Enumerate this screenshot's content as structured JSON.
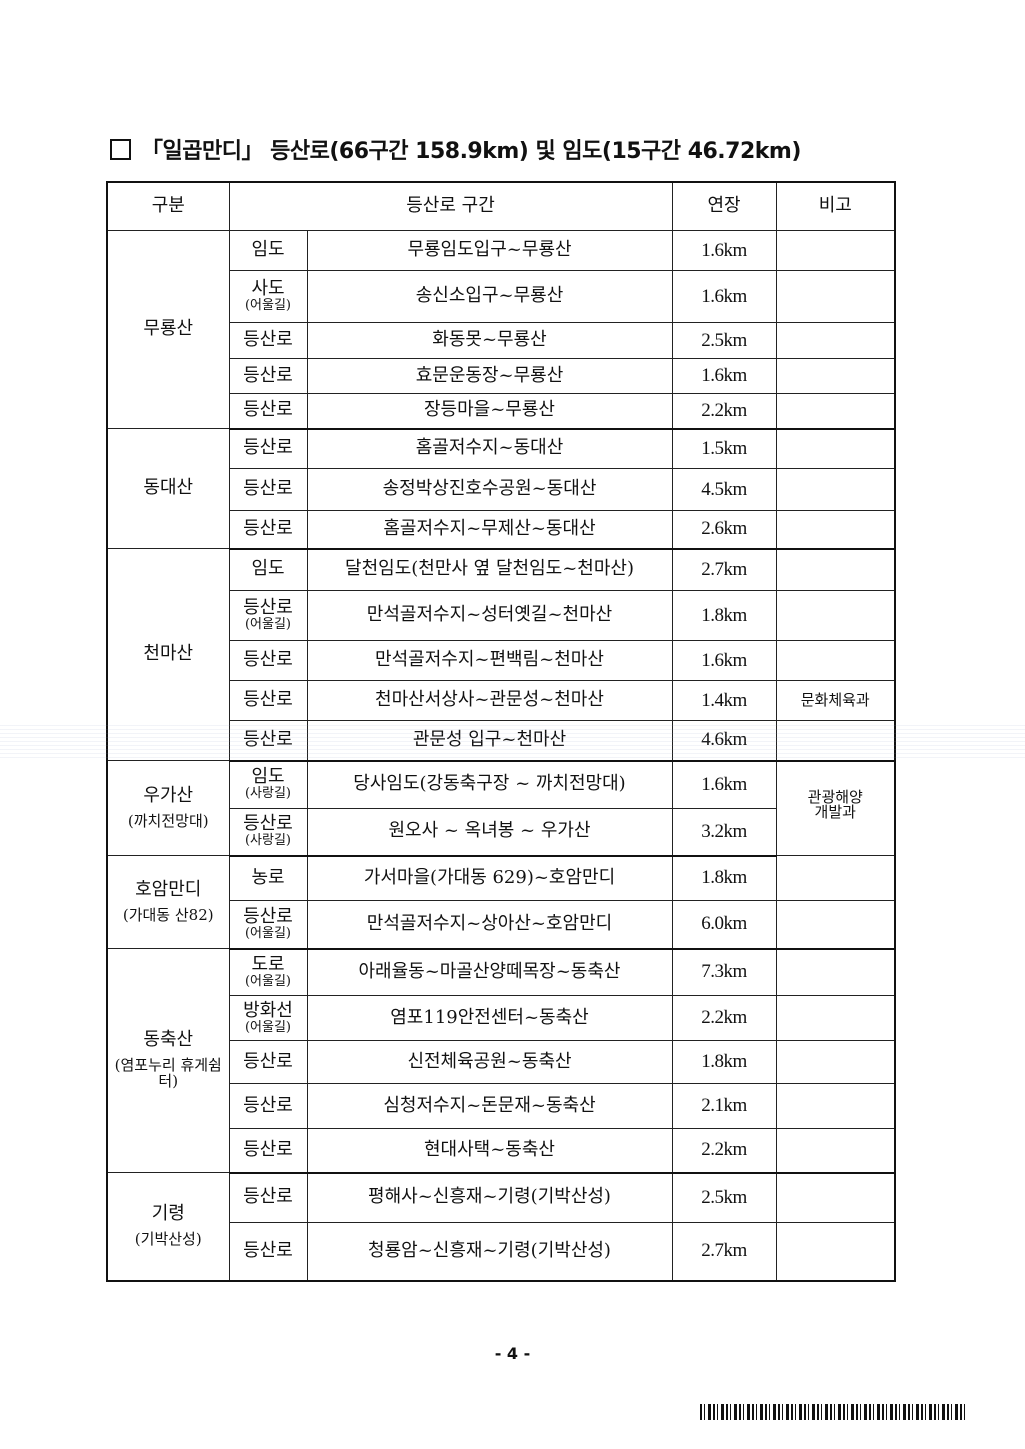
{
  "title": "「일곱만디」 등산로(66구간 158.9km) 및 임도(15구간 46.72km)",
  "headers": [
    "구분",
    "등산로 구간",
    "연장",
    "비고"
  ],
  "groups": [
    {
      "name": "무룡산",
      "sub": "",
      "rows": [
        {
          "type": "임도",
          "type_sub": "",
          "route": "무룡임도입구~무룡산",
          "length": "1.6km",
          "note": ""
        },
        {
          "type": "사도",
          "type_sub": "(어울길)",
          "route": "송신소입구~무룡산",
          "length": "1.6km",
          "note": ""
        },
        {
          "type": "등산로",
          "type_sub": "",
          "route": "화동못~무룡산",
          "length": "2.5km",
          "note": ""
        },
        {
          "type": "등산로",
          "type_sub": "",
          "route": "효문운동장~무룡산",
          "length": "1.6km",
          "note": ""
        },
        {
          "type": "등산로",
          "type_sub": "",
          "route": "장등마을~무룡산",
          "length": "2.2km",
          "note": ""
        }
      ]
    },
    {
      "name": "동대산",
      "sub": "",
      "rows": [
        {
          "type": "등산로",
          "type_sub": "",
          "route": "홈골저수지~동대산",
          "length": "1.5km",
          "note": ""
        },
        {
          "type": "등산로",
          "type_sub": "",
          "route": "송정박상진호수공원~동대산",
          "length": "4.5km",
          "note": ""
        },
        {
          "type": "등산로",
          "type_sub": "",
          "route": "홈골저수지~무제산~동대산",
          "length": "2.6km",
          "note": ""
        }
      ]
    },
    {
      "name": "천마산",
      "sub": "",
      "rows": [
        {
          "type": "임도",
          "type_sub": "",
          "route": "달천임도(천만사 옆 달천임도~천마산)",
          "length": "2.7km",
          "note": ""
        },
        {
          "type": "등산로",
          "type_sub": "(어울길)",
          "route": "만석골저수지~성터옛길~천마산",
          "length": "1.8km",
          "note": ""
        },
        {
          "type": "등산로",
          "type_sub": "",
          "route": "만석골저수지~편백림~천마산",
          "length": "1.6km",
          "note": ""
        },
        {
          "type": "등산로",
          "type_sub": "",
          "route": "천마산서상사~관문성~천마산",
          "length": "1.4km",
          "note": "문화체육과"
        },
        {
          "type": "등산로",
          "type_sub": "",
          "route": "관문성 입구~천마산",
          "length": "4.6km",
          "note": ""
        }
      ]
    },
    {
      "name": "우가산",
      "sub": "(까치전망대)",
      "merged_note": "관광해양 개발과",
      "rows": [
        {
          "type": "임도",
          "type_sub": "(사랑길)",
          "route": "당사임도(강동축구장 ~ 까치전망대)",
          "length": "1.6km"
        },
        {
          "type": "등산로",
          "type_sub": "(사랑길)",
          "route": "원오사 ~ 옥녀봉 ~ 우가산",
          "length": "3.2km"
        }
      ]
    },
    {
      "name": "호암만디",
      "sub": "(가대동 산82)",
      "rows": [
        {
          "type": "농로",
          "type_sub": "",
          "route": "가서마을(가대동 629)~호암만디",
          "length": "1.8km",
          "note": ""
        },
        {
          "type": "등산로",
          "type_sub": "(어울길)",
          "route": "만석골저수지~상아산~호암만디",
          "length": "6.0km",
          "note": ""
        }
      ]
    },
    {
      "name": "동축산",
      "sub": "(염포누리 휴게쉼터)",
      "rows": [
        {
          "type": "도로",
          "type_sub": "(어울길)",
          "route": "아래율동~마골산양떼목장~동축산",
          "length": "7.3km",
          "note": ""
        },
        {
          "type": "방화선",
          "type_sub": "(어울길)",
          "route": "염포119안전센터~동축산",
          "length": "2.2km",
          "note": ""
        },
        {
          "type": "등산로",
          "type_sub": "",
          "route": "신전체육공원~동축산",
          "length": "1.8km",
          "note": ""
        },
        {
          "type": "등산로",
          "type_sub": "",
          "route": "심청저수지~돈문재~동축산",
          "length": "2.1km",
          "note": ""
        },
        {
          "type": "등산로",
          "type_sub": "",
          "route": "현대사택~동축산",
          "length": "2.2km",
          "note": ""
        }
      ]
    },
    {
      "name": "기령",
      "sub": "(기박산성)",
      "rows": [
        {
          "type": "등산로",
          "type_sub": "",
          "route": "평해사~신흥재~기령(기박산성)",
          "length": "2.5km",
          "note": ""
        },
        {
          "type": "등산로",
          "type_sub": "",
          "route": "청룡암~신흥재~기령(기박산성)",
          "length": "2.7km",
          "note": ""
        }
      ]
    }
  ],
  "footer": {
    "page": "- 4 -"
  }
}
